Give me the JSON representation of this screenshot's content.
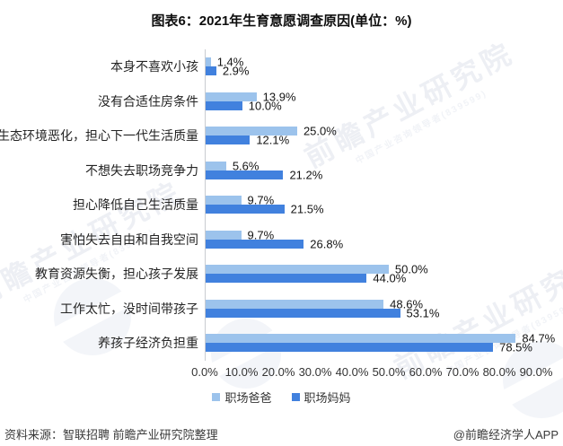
{
  "title": "图表6：2021年生育意愿调查原因(单位：%)",
  "chart_data": {
    "type": "bar",
    "orientation": "horizontal",
    "unit": "%",
    "categories": [
      "本身不喜欢小孩",
      "没有合适住房条件",
      "生态环境恶化，担心下一代生活质量",
      "不想失去职场竞争力",
      "担心降低自己生活质量",
      "害怕失去自由和自我空间",
      "教育资源失衡，担心孩子发展",
      "工作太忙，没时间带孩子",
      "养孩子经济负担重"
    ],
    "series": [
      {
        "name": "职场爸爸",
        "color": "#9cc3ec",
        "values": [
          1.4,
          13.9,
          25.0,
          5.6,
          9.7,
          9.7,
          50.0,
          48.6,
          84.7
        ],
        "labels": [
          "1.4%",
          "13.9%",
          "25.0%",
          "5.6%",
          "9.7%",
          "9.7%",
          "50.0%",
          "48.6%",
          "84.7%"
        ]
      },
      {
        "name": "职场妈妈",
        "color": "#4181de",
        "values": [
          2.9,
          10.0,
          12.1,
          21.2,
          21.5,
          26.8,
          44.0,
          53.1,
          78.5
        ],
        "labels": [
          "2.9%",
          "10.0%",
          "12.1%",
          "21.2%",
          "21.5%",
          "26.8%",
          "44.0%",
          "53.1%",
          "78.5%"
        ]
      }
    ],
    "xlim": [
      0,
      90
    ],
    "x_ticks": [
      "0.0%",
      "10.0%",
      "20.0%",
      "30.0%",
      "40.0%",
      "50.0%",
      "60.0%",
      "70.0%",
      "80.0%",
      "90.0%"
    ],
    "grid": false,
    "legend_position": "bottom",
    "value_labels_shown": true
  },
  "footer": {
    "source": "资料来源：智联招聘 前瞻产业研究院整理",
    "brand": "@前瞻经济学人APP"
  },
  "watermark": {
    "text": "前瞻产业研究院",
    "subtext": "中国产业咨询领导者(839599)"
  }
}
